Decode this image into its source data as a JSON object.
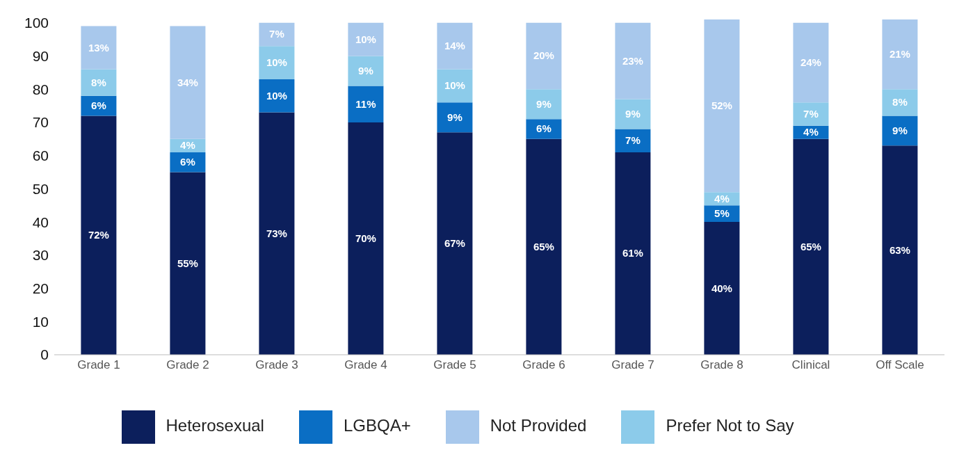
{
  "chart_data": {
    "type": "bar",
    "stacked": true,
    "categories": [
      "Grade 1",
      "Grade 2",
      "Grade 3",
      "Grade 4",
      "Grade 5",
      "Grade 6",
      "Grade 7",
      "Grade 8",
      "Clinical",
      "Off Scale"
    ],
    "series": [
      {
        "name": "Heterosexual",
        "color": "#0c1f5c",
        "values": [
          72,
          55,
          73,
          70,
          67,
          65,
          61,
          40,
          65,
          63
        ],
        "value_labels": [
          "72%",
          "55%",
          "73%",
          "70%",
          "67%",
          "65%",
          "61%",
          "40%",
          "65%",
          "63%"
        ]
      },
      {
        "name": "LGBQA+",
        "color": "#0a6ec4",
        "values": [
          6,
          6,
          10,
          11,
          9,
          6,
          7,
          5,
          4,
          9
        ],
        "value_labels": [
          "6%",
          "6%",
          "10%",
          "11%",
          "9%",
          "6%",
          "7%",
          "5%",
          "4%",
          "9%"
        ]
      },
      {
        "name": "Prefer Not to Say",
        "color": "#8ccbea",
        "values": [
          8,
          4,
          10,
          9,
          10,
          9,
          9,
          4,
          7,
          8
        ],
        "value_labels": [
          "8%",
          "4%",
          "10%",
          "9%",
          "10%",
          "9%",
          "9%",
          "4%",
          "7%",
          "8%"
        ]
      },
      {
        "name": "Not Provided",
        "color": "#a8c8ec",
        "values": [
          13,
          34,
          7,
          10,
          14,
          20,
          23,
          52,
          24,
          21
        ],
        "value_labels": [
          "13%",
          "34%",
          "7%",
          "10%",
          "14%",
          "20%",
          "23%",
          "52%",
          "24%",
          "21%"
        ]
      }
    ],
    "ylim": [
      0,
      101
    ],
    "yticks": [
      0,
      10,
      20,
      30,
      40,
      50,
      60,
      70,
      80,
      90,
      100
    ],
    "grid": false,
    "legend": "bottom"
  }
}
